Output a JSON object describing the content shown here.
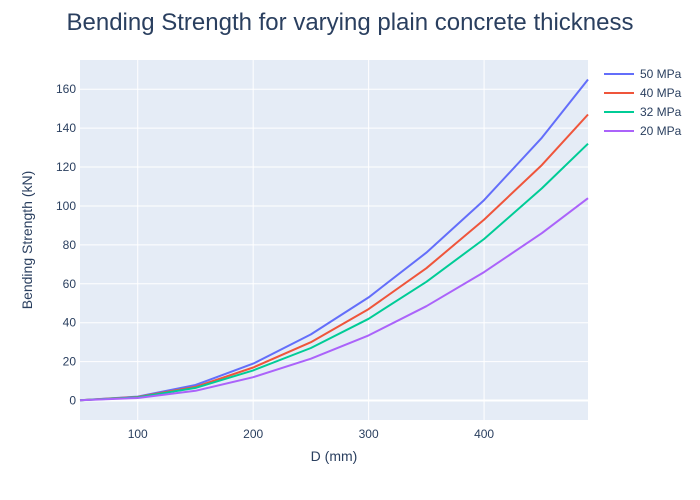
{
  "chart_data": {
    "type": "line",
    "title": "Bending Strength for varying plain concrete thickness",
    "xlabel": "D (mm)",
    "ylabel": "Bending Strength (kN)",
    "xlim": [
      50,
      490
    ],
    "ylim": [
      -10,
      175
    ],
    "xticks": [
      100,
      200,
      300,
      400
    ],
    "yticks": [
      0,
      20,
      40,
      60,
      80,
      100,
      120,
      140,
      160
    ],
    "x": [
      50,
      100,
      150,
      200,
      250,
      300,
      350,
      400,
      450,
      490
    ],
    "series": [
      {
        "name": "50 MPa",
        "color": "#636efa",
        "values": [
          0.2,
          2.0,
          8.0,
          19.0,
          34.0,
          53.0,
          76.0,
          103.0,
          135.0,
          165.0
        ]
      },
      {
        "name": "40 MPa",
        "color": "#ef553b",
        "values": [
          0.2,
          1.8,
          7.0,
          17.0,
          30.0,
          47.0,
          68.0,
          93.0,
          121.0,
          147.0
        ]
      },
      {
        "name": "32 MPa",
        "color": "#00cc96",
        "values": [
          0.2,
          1.6,
          6.5,
          15.5,
          27.0,
          42.0,
          61.0,
          83.0,
          109.0,
          132.0
        ]
      },
      {
        "name": "20 MPa",
        "color": "#ab63fa",
        "values": [
          0.1,
          1.3,
          5.0,
          12.0,
          21.5,
          33.5,
          48.5,
          66.0,
          86.0,
          104.0
        ]
      }
    ],
    "legend_position": "right",
    "grid": true
  }
}
